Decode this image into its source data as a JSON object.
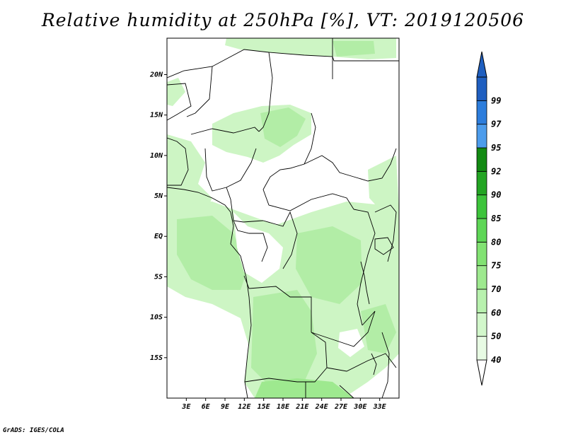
{
  "title": "Relative humidity at 250hPa [%], VT: 2019120506",
  "credit": "GrADS: IGES/COLA",
  "map": {
    "lon_range": [
      0,
      36
    ],
    "lat_range": [
      -20,
      24.5
    ],
    "lat_ticks": [
      {
        "value": 20,
        "label": "20N"
      },
      {
        "value": 15,
        "label": "15N"
      },
      {
        "value": 10,
        "label": "10N"
      },
      {
        "value": 5,
        "label": "5N"
      },
      {
        "value": 0,
        "label": "EQ"
      },
      {
        "value": -5,
        "label": "5S"
      },
      {
        "value": -10,
        "label": "10S"
      },
      {
        "value": -15,
        "label": "15S"
      }
    ],
    "lon_ticks": [
      {
        "value": 3,
        "label": "3E"
      },
      {
        "value": 6,
        "label": "6E"
      },
      {
        "value": 9,
        "label": "9E"
      },
      {
        "value": 12,
        "label": "12E"
      },
      {
        "value": 15,
        "label": "15E"
      },
      {
        "value": 18,
        "label": "18E"
      },
      {
        "value": 21,
        "label": "21E"
      },
      {
        "value": 24,
        "label": "24E"
      },
      {
        "value": 27,
        "label": "27E"
      },
      {
        "value": 30,
        "label": "30E"
      },
      {
        "value": 33,
        "label": "33E"
      }
    ]
  },
  "colorbar": {
    "levels": [
      {
        "label": "40",
        "color": "#e8fbe4"
      },
      {
        "label": "50",
        "color": "#d2f7cb"
      },
      {
        "label": "60",
        "color": "#b8f1ae"
      },
      {
        "label": "70",
        "color": "#9ee98f"
      },
      {
        "label": "75",
        "color": "#82e273"
      },
      {
        "label": "80",
        "color": "#5ed656"
      },
      {
        "label": "85",
        "color": "#3dc43b"
      },
      {
        "label": "90",
        "color": "#23a523"
      },
      {
        "label": "92",
        "color": "#128a12"
      },
      {
        "label": "95",
        "color": "#4c9cec"
      },
      {
        "label": "97",
        "color": "#2c7ddc"
      },
      {
        "label": "99",
        "color": "#1f5fc0"
      }
    ]
  },
  "colors": {
    "humid_light": "#cdf5c4",
    "humid_mid": "#b2eda6",
    "border": "#000000"
  }
}
